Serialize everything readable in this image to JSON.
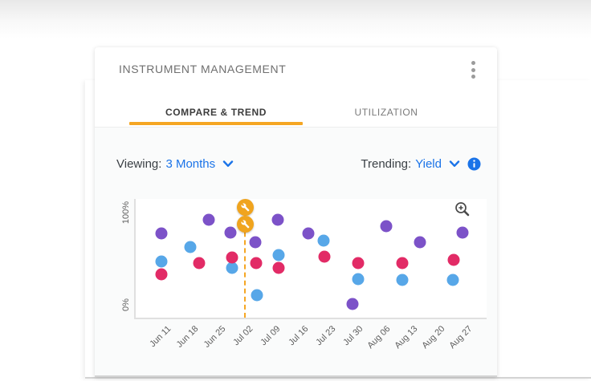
{
  "card": {
    "title": "INSTRUMENT MANAGEMENT",
    "menu_icon": "kebab-menu",
    "accent_color": "#F5A623",
    "tabs": [
      {
        "label": "COMPARE & TREND",
        "active": true
      },
      {
        "label": "UTILIZATION",
        "active": false
      }
    ]
  },
  "controls": {
    "viewing_label": "Viewing:",
    "viewing_value": "3 Months",
    "trending_label": "Trending:",
    "trending_value": "Yield",
    "link_color": "#1A73E8",
    "info_icon": "info-icon",
    "dropdown_icon": "chevron-down-icon"
  },
  "chart_data": {
    "type": "scatter",
    "title": "",
    "x_unit": "category_index",
    "categories": [
      "Jun 11",
      "Jun 18",
      "Jun 25",
      "Jul 02",
      "Jul 09",
      "Jul 16",
      "Jul 23",
      "Jul 30",
      "Aug 06",
      "Aug 13",
      "Aug 20",
      "Aug 27"
    ],
    "y_axis": {
      "ticks": [
        "0%",
        "100%"
      ],
      "min": 0,
      "max": 100,
      "unit": "%"
    },
    "grid": false,
    "legend": "none",
    "series": [
      {
        "name": "purple",
        "color": "#7C52C8",
        "points": [
          [
            0,
            78
          ],
          [
            1.72,
            91
          ],
          [
            2.52,
            79
          ],
          [
            3.43,
            70
          ],
          [
            4.25,
            91
          ],
          [
            5.36,
            78
          ],
          [
            6.98,
            13
          ],
          [
            8.21,
            85
          ],
          [
            9.44,
            70
          ],
          [
            11,
            79
          ]
        ]
      },
      {
        "name": "blue",
        "color": "#57A7E8",
        "points": [
          [
            0,
            52
          ],
          [
            1.05,
            66
          ],
          [
            2.58,
            46
          ],
          [
            3.49,
            21
          ],
          [
            4.28,
            58
          ],
          [
            5.92,
            72
          ],
          [
            7.18,
            36
          ],
          [
            8.8,
            35
          ],
          [
            10.64,
            35
          ]
        ]
      },
      {
        "name": "pink",
        "color": "#E22B66",
        "points": [
          [
            0,
            40
          ],
          [
            1.38,
            51
          ],
          [
            2.58,
            56
          ],
          [
            3.46,
            51
          ],
          [
            4.28,
            46
          ],
          [
            5.95,
            57
          ],
          [
            7.18,
            51
          ],
          [
            8.8,
            51
          ],
          [
            10.66,
            54
          ]
        ]
      }
    ],
    "event_marker": {
      "x": 3.05,
      "icon": "wrench",
      "color": "#F0A41E",
      "count": 2,
      "line": "dashed-vertical"
    },
    "zoom_icon": "zoom-in"
  }
}
